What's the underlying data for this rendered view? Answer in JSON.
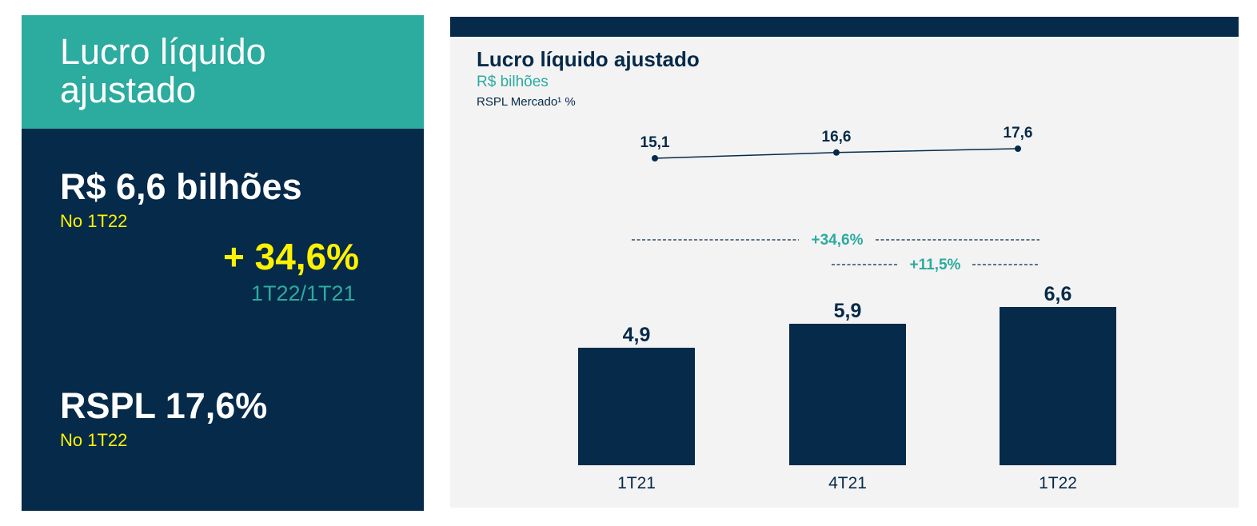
{
  "left": {
    "title": "Lucro líquido ajustado",
    "profit_value": "R$ 6,6 bilhões",
    "profit_period": "No 1T22",
    "growth_value": "+ 34,6%",
    "growth_period": "1T22/1T21",
    "roe_value": "RSPL 17,6%",
    "roe_period": "No 1T22"
  },
  "colors": {
    "navy": "#062a49",
    "teal": "#2cab9f",
    "yellow": "#fff200",
    "panel_bg": "#f3f3f3"
  },
  "chart_data": {
    "type": "bar",
    "title": "Lucro líquido ajustado",
    "unit": "R$ bilhões",
    "subtitle": "RSPL Mercado¹ %",
    "categories": [
      "1T21",
      "4T21",
      "1T22"
    ],
    "series": [
      {
        "values": [
          4.9,
          5.9,
          6.6
        ],
        "labels": [
          "4,9",
          "5,9",
          "6,6"
        ]
      }
    ],
    "line_series": {
      "values": [
        15.1,
        16.6,
        17.6
      ],
      "labels": [
        "15,1",
        "16,6",
        "17,6"
      ]
    },
    "ylim": [
      0,
      6.6
    ],
    "line_ylim": [
      15.1,
      17.6
    ],
    "annotations": [
      {
        "text": "+34,6%",
        "from": "1T21",
        "to": "1T22"
      },
      {
        "text": "+11,5%",
        "from": "4T21",
        "to": "1T22"
      }
    ],
    "grid": false
  }
}
